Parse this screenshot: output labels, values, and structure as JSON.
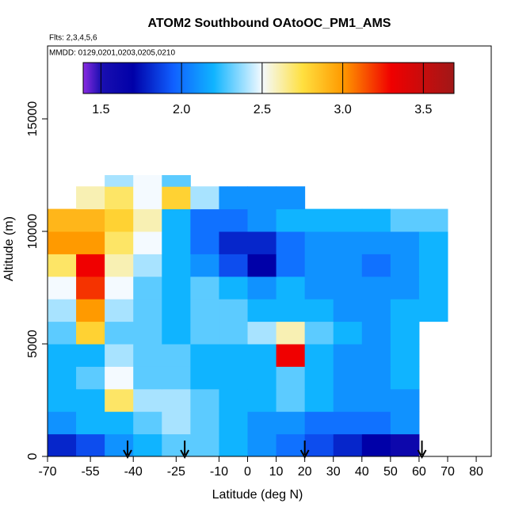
{
  "chart_data": {
    "type": "heatmap",
    "title": "ATOM2 Southbound OAtoOC_PM1_AMS",
    "subtitle": "Flts: 2,3,4,5,6",
    "annotation": "MMDD: 0129,0201,0203,0205,0210",
    "x_label": "Latitude (deg N)",
    "y_label": "Altitude (m)",
    "xlim": [
      -70,
      85.25
    ],
    "ylim": [
      0,
      18240
    ],
    "xticks": [
      -70,
      -55,
      -40,
      -25,
      -10,
      0,
      10,
      20,
      30,
      40,
      50,
      60,
      70,
      80
    ],
    "yticks": [
      0,
      5000,
      10000,
      15000
    ],
    "x_edges": [
      -70,
      -60,
      -50,
      -40,
      -30,
      -20,
      -10,
      0,
      10,
      20,
      30,
      40,
      50,
      60,
      70
    ],
    "y_edges": [
      0,
      1000,
      2000,
      3000,
      4000,
      5000,
      6000,
      7000,
      8000,
      9000,
      10000,
      11000,
      12000,
      12500
    ],
    "z": [
      [
        1.8,
        1.9,
        2.1,
        2.2,
        2.3,
        2.3,
        2.2,
        2.1,
        2.0,
        1.9,
        1.8,
        1.7,
        1.6,
        null
      ],
      [
        2.1,
        2.2,
        2.2,
        2.3,
        2.4,
        2.3,
        2.2,
        2.1,
        2.1,
        2.0,
        2.0,
        2.0,
        2.1,
        null
      ],
      [
        2.2,
        2.2,
        2.7,
        2.4,
        2.4,
        2.3,
        2.2,
        2.2,
        2.3,
        2.2,
        2.1,
        2.1,
        2.1,
        null
      ],
      [
        2.2,
        2.3,
        2.5,
        2.3,
        2.3,
        2.2,
        2.2,
        2.2,
        2.3,
        2.2,
        2.1,
        2.1,
        2.2,
        null
      ],
      [
        2.2,
        2.2,
        2.4,
        2.3,
        2.3,
        2.2,
        2.2,
        2.2,
        3.3,
        2.2,
        2.1,
        2.1,
        2.2,
        null
      ],
      [
        2.3,
        2.8,
        2.3,
        2.3,
        2.2,
        2.3,
        2.3,
        2.4,
        2.6,
        2.3,
        2.2,
        2.1,
        2.2,
        null
      ],
      [
        2.4,
        3.0,
        2.4,
        2.3,
        2.2,
        2.3,
        2.3,
        2.2,
        2.2,
        2.2,
        2.1,
        2.1,
        2.2,
        2.2
      ],
      [
        2.5,
        3.2,
        2.5,
        2.3,
        2.2,
        2.3,
        2.2,
        2.1,
        2.2,
        2.1,
        2.1,
        2.1,
        2.1,
        2.2
      ],
      [
        2.7,
        3.3,
        2.6,
        2.4,
        2.2,
        2.1,
        1.9,
        1.7,
        2.0,
        2.1,
        2.1,
        2.0,
        2.1,
        2.2
      ],
      [
        3.0,
        3.0,
        2.7,
        2.5,
        2.2,
        2.0,
        1.8,
        1.8,
        2.0,
        2.1,
        2.1,
        2.1,
        2.1,
        2.2
      ],
      [
        2.9,
        2.9,
        2.8,
        2.6,
        2.2,
        2.0,
        2.0,
        2.1,
        2.2,
        2.2,
        2.2,
        2.2,
        2.3,
        2.3
      ],
      [
        null,
        2.6,
        2.7,
        2.5,
        2.8,
        2.4,
        2.1,
        2.1,
        2.1,
        null,
        null,
        null,
        null,
        null
      ],
      [
        null,
        null,
        2.4,
        2.5,
        2.3,
        null,
        null,
        null,
        null,
        null,
        null,
        null,
        null,
        null
      ]
    ],
    "colorbar_lim": [
      1.39,
      3.69
    ],
    "colorbar_ticks": [
      {
        "value": 1.5,
        "label": "1.5"
      },
      {
        "value": 2,
        "label": "2.0"
      },
      {
        "value": 2.5,
        "label": "2.5"
      },
      {
        "value": 3,
        "label": "3.0"
      },
      {
        "value": 3.5,
        "label": "3.5"
      }
    ],
    "colorscale": [
      [
        1.39,
        "#8a2be2"
      ],
      [
        1.5,
        "#1a0fb0"
      ],
      [
        1.7,
        "#0000a8"
      ],
      [
        1.95,
        "#1060ff"
      ],
      [
        2.2,
        "#10b4ff"
      ],
      [
        2.5,
        "#f4faff"
      ],
      [
        2.75,
        "#ffe040"
      ],
      [
        3.0,
        "#ff9a00"
      ],
      [
        3.3,
        "#f00000"
      ],
      [
        3.69,
        "#a01818"
      ]
    ],
    "arrows": [
      -42,
      -22,
      20,
      61
    ]
  }
}
